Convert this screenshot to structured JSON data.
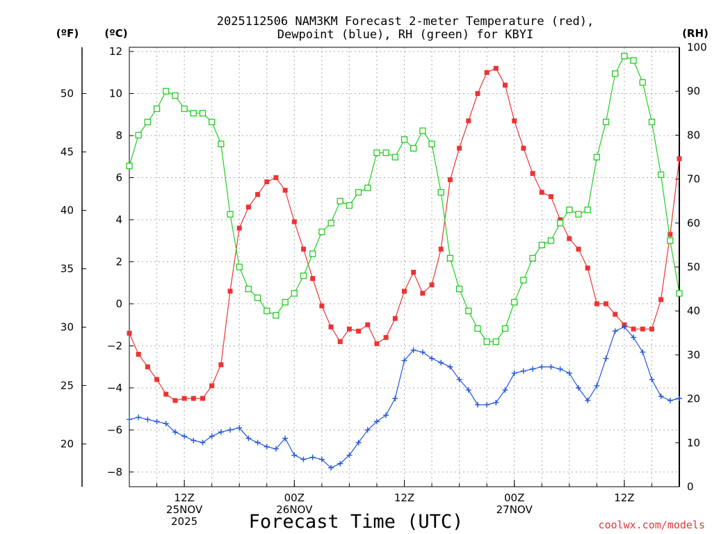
{
  "chart_data": {
    "type": "line",
    "title_line1": "2025112506 NAM3KM Forecast 2-meter Temperature (red),",
    "title_line2": "Dewpoint (blue), RH (green) for KBYI",
    "y_left_outer_unit": "(ºF)",
    "y_left_inner_unit": "(ºC)",
    "y_right_unit": "(RH)",
    "xlabel": "Forecast Time (UTC)",
    "credit": "coolwx.com/models",
    "x_range_hours": [
      6,
      66
    ],
    "x_ticks": [
      {
        "hour": 12,
        "lines": [
          "12Z",
          "25NOV",
          "2025"
        ]
      },
      {
        "hour": 24,
        "lines": [
          "00Z",
          "26NOV"
        ]
      },
      {
        "hour": 36,
        "lines": [
          "12Z"
        ]
      },
      {
        "hour": 48,
        "lines": [
          "00Z",
          "27NOV"
        ]
      },
      {
        "hour": 60,
        "lines": [
          "12Z"
        ]
      }
    ],
    "ylim_c": [
      -8.7,
      12.2
    ],
    "yticks_c": [
      "-8",
      "-6",
      "-4",
      "-2",
      "0",
      "2",
      "4",
      "6",
      "8",
      "10",
      "12"
    ],
    "yticks_f": [
      "20",
      "25",
      "30",
      "35",
      "40",
      "45",
      "50"
    ],
    "ylim_rh": [
      0,
      100
    ],
    "yticks_rh": [
      "0",
      "10",
      "20",
      "30",
      "40",
      "50",
      "60",
      "70",
      "80",
      "90",
      "100"
    ],
    "grid": true,
    "series": [
      {
        "name": "Temperature",
        "axis": "C",
        "color": "#ee3333",
        "marker": "filled-square",
        "values": [
          -1.4,
          -2.4,
          -3.0,
          -3.6,
          -4.3,
          -4.6,
          -4.5,
          -4.5,
          -4.5,
          -3.9,
          -2.9,
          0.6,
          3.6,
          4.6,
          5.2,
          5.8,
          6.0,
          5.4,
          3.9,
          2.6,
          1.2,
          -0.1,
          -1.1,
          -1.8,
          -1.2,
          -1.3,
          -1.0,
          -1.9,
          -1.6,
          -0.7,
          0.6,
          1.5,
          0.5,
          0.9,
          2.6,
          5.9,
          7.4,
          8.7,
          10.0,
          11.0,
          11.2,
          10.4,
          8.7,
          7.4,
          6.2,
          5.3,
          5.1,
          4.0,
          3.1,
          2.6,
          1.7,
          0.0,
          0.0,
          -0.5,
          -1.0,
          -1.2,
          -1.2,
          -1.2,
          0.2,
          3.3,
          6.9
        ]
      },
      {
        "name": "Dewpoint",
        "axis": "C",
        "color": "#2255dd",
        "marker": "plus",
        "values": [
          -5.5,
          -5.4,
          -5.5,
          -5.6,
          -5.7,
          -6.1,
          -6.3,
          -6.5,
          -6.6,
          -6.3,
          -6.1,
          -6.0,
          -5.9,
          -6.4,
          -6.6,
          -6.8,
          -6.9,
          -6.4,
          -7.2,
          -7.4,
          -7.3,
          -7.4,
          -7.8,
          -7.6,
          -7.2,
          -6.6,
          -6.0,
          -5.6,
          -5.3,
          -4.5,
          -2.7,
          -2.2,
          -2.3,
          -2.6,
          -2.8,
          -3.0,
          -3.6,
          -4.1,
          -4.8,
          -4.8,
          -4.7,
          -4.1,
          -3.3,
          -3.2,
          -3.1,
          -3.0,
          -3.0,
          -3.1,
          -3.3,
          -4.0,
          -4.6,
          -3.9,
          -2.6,
          -1.3,
          -1.1,
          -1.6,
          -2.3,
          -3.6,
          -4.4,
          -4.6,
          -4.5
        ]
      },
      {
        "name": "RH",
        "axis": "RH",
        "color": "#22cc22",
        "marker": "open-square",
        "values": [
          73,
          80,
          83,
          86,
          90,
          89,
          86,
          85,
          85,
          83,
          78,
          62,
          50,
          45,
          43,
          40,
          39,
          42,
          44,
          48,
          53,
          58,
          60,
          65,
          64,
          67,
          68,
          76,
          76,
          75,
          79,
          77,
          81,
          78,
          67,
          52,
          45,
          40,
          36,
          33,
          33,
          36,
          42,
          47,
          52,
          55,
          56,
          60,
          63,
          62,
          63,
          75,
          83,
          94,
          98,
          97,
          92,
          83,
          71,
          56,
          44
        ]
      }
    ]
  }
}
